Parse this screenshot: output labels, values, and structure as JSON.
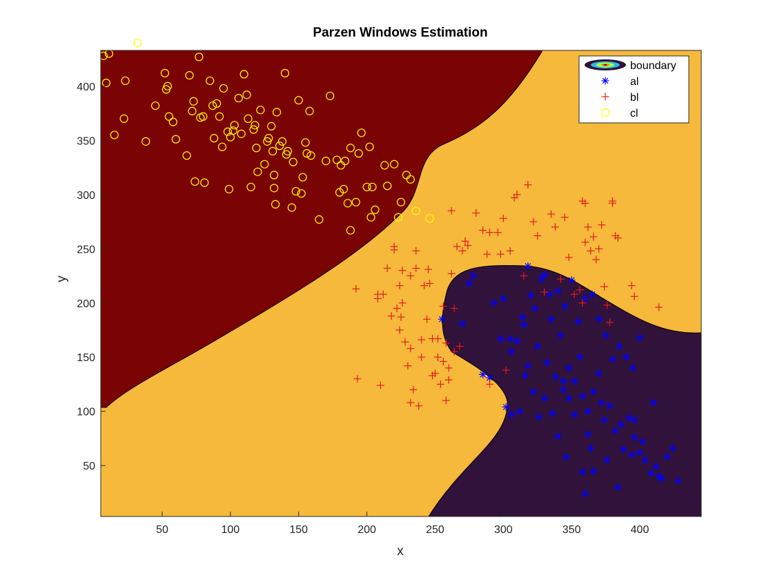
{
  "chart_data": {
    "type": "scatter",
    "title": "Parzen Windows Estimation",
    "xlabel": "x",
    "ylabel": "y",
    "xlim": [
      5,
      445
    ],
    "ylim": [
      3,
      433
    ],
    "xticks": [
      50,
      100,
      150,
      200,
      250,
      300,
      350,
      400
    ],
    "yticks": [
      50,
      100,
      150,
      200,
      250,
      300,
      350,
      400
    ],
    "grid": false,
    "legend_location": "top-right",
    "background": {
      "name": "boundary",
      "regions": [
        {
          "class": "cl",
          "color": "#7a0403"
        },
        {
          "class": "bl",
          "color": "#f6b93b"
        },
        {
          "class": "al",
          "color": "#30123b"
        }
      ]
    },
    "series": [
      {
        "name": "al",
        "marker": "asterisk",
        "color": "#0000ff",
        "points": [
          [
            255,
            185
          ],
          [
            285,
            134
          ],
          [
            290,
            131
          ],
          [
            302,
            104
          ],
          [
            318,
            234
          ],
          [
            270,
            181
          ],
          [
            275,
            218
          ],
          [
            278,
            225
          ],
          [
            293,
            200
          ],
          [
            300,
            204
          ],
          [
            305,
            167
          ],
          [
            310,
            165
          ],
          [
            315,
            180
          ],
          [
            320,
            207
          ],
          [
            323,
            195
          ],
          [
            328,
            222
          ],
          [
            330,
            226
          ],
          [
            335,
            185
          ],
          [
            340,
            211
          ],
          [
            342,
            170
          ],
          [
            345,
            197
          ],
          [
            350,
            221
          ],
          [
            355,
            183
          ],
          [
            360,
            204
          ],
          [
            365,
            208
          ],
          [
            370,
            185
          ],
          [
            375,
            170
          ],
          [
            380,
            148
          ],
          [
            385,
            160
          ],
          [
            390,
            150
          ],
          [
            395,
            140
          ],
          [
            400,
            168
          ],
          [
            318,
            142
          ],
          [
            325,
            160
          ],
          [
            332,
            145
          ],
          [
            338,
            132
          ],
          [
            344,
            120
          ],
          [
            348,
            140
          ],
          [
            352,
            128
          ],
          [
            358,
            114
          ],
          [
            362,
            100
          ],
          [
            366,
            118
          ],
          [
            370,
            135
          ],
          [
            374,
            92
          ],
          [
            378,
            105
          ],
          [
            382,
            82
          ],
          [
            386,
            88
          ],
          [
            392,
            94
          ],
          [
            396,
            76
          ],
          [
            400,
            62
          ],
          [
            404,
            55
          ],
          [
            408,
            43
          ],
          [
            412,
            49
          ],
          [
            416,
            38
          ],
          [
            420,
            58
          ],
          [
            424,
            66
          ],
          [
            428,
            36
          ],
          [
            346,
            58
          ],
          [
            358,
            44
          ],
          [
            340,
            77
          ],
          [
            352,
            97
          ],
          [
            362,
            79
          ],
          [
            376,
            55
          ],
          [
            394,
            60
          ],
          [
            410,
            108
          ],
          [
            316,
            133
          ],
          [
            322,
            118
          ],
          [
            330,
            112
          ],
          [
            306,
            155
          ],
          [
            312,
            100
          ],
          [
            298,
            167
          ],
          [
            336,
            98
          ],
          [
            348,
            112
          ],
          [
            356,
            150
          ],
          [
            364,
            66
          ],
          [
            372,
            108
          ],
          [
            388,
            65
          ],
          [
            396,
            92
          ],
          [
            402,
            72
          ],
          [
            414,
            40
          ],
          [
            366,
            45
          ],
          [
            360,
            24
          ],
          [
            384,
            30
          ],
          [
            344,
            128
          ],
          [
            326,
            95
          ],
          [
            334,
            208
          ],
          [
            306,
            97
          ],
          [
            314,
            187
          ]
        ]
      },
      {
        "name": "bl",
        "marker": "plus",
        "color": "#e31a1c",
        "points": [
          [
            192,
            213
          ],
          [
            193,
            130
          ],
          [
            208,
            208
          ],
          [
            210,
            124
          ],
          [
            215,
            232
          ],
          [
            220,
            252
          ],
          [
            222,
            195
          ],
          [
            225,
            187
          ],
          [
            228,
            164
          ],
          [
            230,
            142
          ],
          [
            232,
            108
          ],
          [
            234,
            120
          ],
          [
            236,
            232
          ],
          [
            238,
            105
          ],
          [
            240,
            150
          ],
          [
            242,
            216
          ],
          [
            245,
            231
          ],
          [
            248,
            167
          ],
          [
            250,
            135
          ],
          [
            252,
            150
          ],
          [
            254,
            125
          ],
          [
            256,
            146
          ],
          [
            258,
            110
          ],
          [
            260,
            140
          ],
          [
            262,
            285
          ],
          [
            264,
            155
          ],
          [
            266,
            252
          ],
          [
            268,
            160
          ],
          [
            270,
            248
          ],
          [
            272,
            257
          ],
          [
            274,
            253
          ],
          [
            280,
            283
          ],
          [
            285,
            267
          ],
          [
            288,
            245
          ],
          [
            290,
            125
          ],
          [
            296,
            265
          ],
          [
            300,
            278
          ],
          [
            302,
            138
          ],
          [
            305,
            248
          ],
          [
            308,
            297
          ],
          [
            310,
            300
          ],
          [
            315,
            225
          ],
          [
            318,
            309
          ],
          [
            322,
            275
          ],
          [
            325,
            262
          ],
          [
            330,
            210
          ],
          [
            335,
            282
          ],
          [
            338,
            270
          ],
          [
            342,
            222
          ],
          [
            345,
            279
          ],
          [
            348,
            242
          ],
          [
            352,
            208
          ],
          [
            356,
            212
          ],
          [
            358,
            200
          ],
          [
            360,
            256
          ],
          [
            362,
            270
          ],
          [
            364,
            248
          ],
          [
            366,
            261
          ],
          [
            368,
            240
          ],
          [
            370,
            250
          ],
          [
            372,
            272
          ],
          [
            374,
            215
          ],
          [
            376,
            198
          ],
          [
            378,
            182
          ],
          [
            380,
            292
          ],
          [
            382,
            262
          ],
          [
            394,
            216
          ],
          [
            396,
            206
          ],
          [
            414,
            196
          ],
          [
            212,
            208
          ],
          [
            218,
            188
          ],
          [
            224,
            175
          ],
          [
            226,
            200
          ],
          [
            232,
            225
          ],
          [
            236,
            248
          ],
          [
            240,
            166
          ],
          [
            244,
            185
          ],
          [
            246,
            218
          ],
          [
            248,
            133
          ],
          [
            252,
            167
          ],
          [
            256,
            197
          ],
          [
            258,
            163
          ],
          [
            260,
            129
          ],
          [
            226,
            230
          ],
          [
            224,
            216
          ],
          [
            208,
            204
          ],
          [
            232,
            158
          ],
          [
            262,
            227
          ],
          [
            264,
            195
          ],
          [
            358,
            294
          ],
          [
            360,
            292
          ],
          [
            380,
            294
          ],
          [
            384,
            260
          ],
          [
            220,
            249
          ],
          [
            290,
            265
          ],
          [
            298,
            245
          ]
        ]
      },
      {
        "name": "cl",
        "marker": "circle",
        "color": "#ffff00",
        "points": [
          [
            7,
            428
          ],
          [
            9,
            403
          ],
          [
            11,
            430
          ],
          [
            15,
            355
          ],
          [
            22,
            370
          ],
          [
            23,
            405
          ],
          [
            32,
            440
          ],
          [
            38,
            349
          ],
          [
            45,
            382
          ],
          [
            52,
            412
          ],
          [
            53,
            397
          ],
          [
            54,
            400
          ],
          [
            55,
            372
          ],
          [
            58,
            367
          ],
          [
            60,
            351
          ],
          [
            68,
            336
          ],
          [
            70,
            410
          ],
          [
            72,
            377
          ],
          [
            73,
            386
          ],
          [
            74,
            312
          ],
          [
            77,
            427
          ],
          [
            78,
            371
          ],
          [
            80,
            372
          ],
          [
            81,
            311
          ],
          [
            85,
            405
          ],
          [
            87,
            382
          ],
          [
            88,
            352
          ],
          [
            90,
            384
          ],
          [
            92,
            372
          ],
          [
            94,
            344
          ],
          [
            95,
            398
          ],
          [
            98,
            358
          ],
          [
            99,
            305
          ],
          [
            100,
            353
          ],
          [
            102,
            359
          ],
          [
            103,
            364
          ],
          [
            106,
            389
          ],
          [
            108,
            356
          ],
          [
            110,
            411
          ],
          [
            112,
            392
          ],
          [
            113,
            370
          ],
          [
            115,
            307
          ],
          [
            117,
            360
          ],
          [
            118,
            364
          ],
          [
            119,
            343
          ],
          [
            120,
            321
          ],
          [
            122,
            378
          ],
          [
            125,
            328
          ],
          [
            127,
            349
          ],
          [
            128,
            352
          ],
          [
            130,
            363
          ],
          [
            131,
            340
          ],
          [
            132,
            318
          ],
          [
            133,
            291
          ],
          [
            134,
            376
          ],
          [
            136,
            345
          ],
          [
            138,
            349
          ],
          [
            140,
            412
          ],
          [
            141,
            337
          ],
          [
            142,
            340
          ],
          [
            145,
            288
          ],
          [
            146,
            330
          ],
          [
            148,
            303
          ],
          [
            150,
            387
          ],
          [
            152,
            301
          ],
          [
            153,
            316
          ],
          [
            155,
            348
          ],
          [
            156,
            338
          ],
          [
            158,
            377
          ],
          [
            159,
            336
          ],
          [
            165,
            277
          ],
          [
            170,
            331
          ],
          [
            173,
            391
          ],
          [
            178,
            332
          ],
          [
            180,
            302
          ],
          [
            181,
            327
          ],
          [
            183,
            305
          ],
          [
            184,
            331
          ],
          [
            186,
            292
          ],
          [
            188,
            343
          ],
          [
            188,
            267
          ],
          [
            192,
            293
          ],
          [
            194,
            338
          ],
          [
            196,
            357
          ],
          [
            200,
            307
          ],
          [
            202,
            344
          ],
          [
            203,
            279
          ],
          [
            204,
            307
          ],
          [
            206,
            286
          ],
          [
            213,
            327
          ],
          [
            215,
            308
          ],
          [
            220,
            328
          ],
          [
            223,
            279
          ],
          [
            225,
            293
          ],
          [
            229,
            318
          ],
          [
            232,
            314
          ],
          [
            236,
            285
          ],
          [
            246,
            278
          ],
          [
            132,
            306
          ]
        ]
      }
    ]
  }
}
